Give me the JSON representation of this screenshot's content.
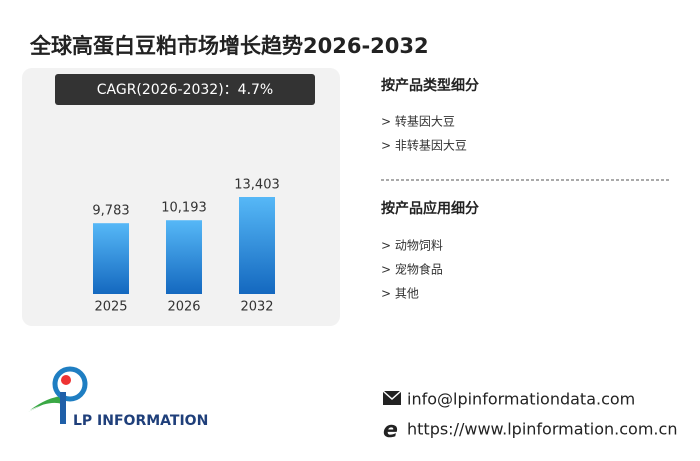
{
  "chart_data": {
    "type": "bar",
    "title": "全球高蛋白豆粕市场增长趋势2026-2032",
    "subtitle": "CAGR(2026-2032)：4.7%",
    "categories": [
      "2025",
      "2026",
      "2032"
    ],
    "values": [
      9783,
      10193,
      13403
    ],
    "value_labels": [
      "9,783",
      "10,193",
      "13,403"
    ],
    "color_top": "#56b8f7",
    "color_bottom": "#1468bf"
  },
  "segments": [
    {
      "title": "按产品类型细分",
      "items": [
        "> 转基因大豆",
        "> 非转基因大豆"
      ]
    },
    {
      "title": "按产品应用细分",
      "items": [
        "> 动物饲料",
        "> 宠物食品",
        "> 其他"
      ]
    }
  ],
  "logo": {
    "text": "LP INFORMATION"
  },
  "contact": {
    "email": "info@lpinformationdata.com",
    "website": "https://www.lpinformation.com.cn"
  }
}
